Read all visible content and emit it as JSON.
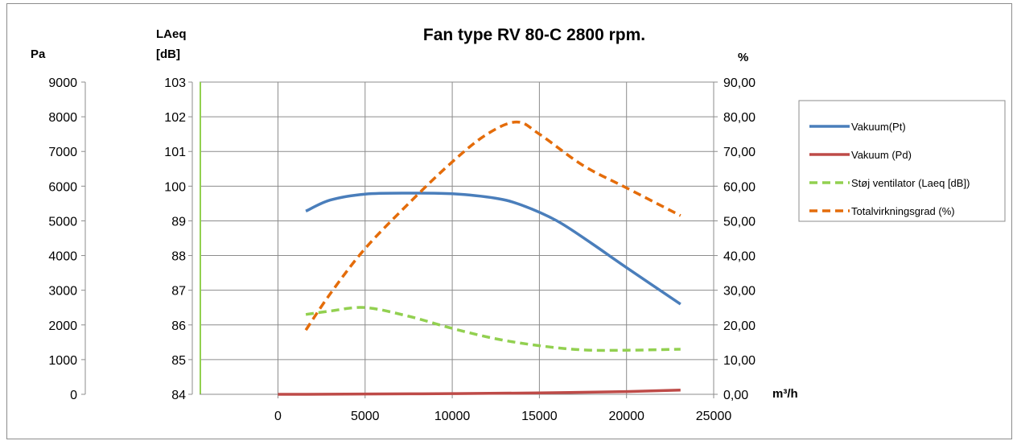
{
  "chart_data": {
    "type": "line",
    "title": "Fan type RV 80-C 2800 rpm.",
    "x_axis": {
      "label": "m³/h",
      "range": [
        -4500,
        25000
      ],
      "ticks": [
        0,
        5000,
        10000,
        15000,
        20000,
        25000
      ]
    },
    "y_axis_pa": {
      "label": "Pa",
      "range": [
        0,
        9000
      ],
      "ticks": [
        "0",
        "1000",
        "2000",
        "3000",
        "4000",
        "5000",
        "6000",
        "7000",
        "8000",
        "9000"
      ]
    },
    "y_axis_laeq": {
      "label_line1": "LAeq",
      "label_line2": "[dB]",
      "range": [
        84,
        103
      ],
      "note": "non-linear display: each gridline step is 1 dB except between 89 and 100",
      "ticks": [
        "84",
        "85",
        "86",
        "87",
        "88",
        "89",
        "100",
        "101",
        "102",
        "103"
      ]
    },
    "y_axis_pct": {
      "label": "%",
      "range": [
        0,
        90
      ],
      "ticks": [
        "0,00",
        "10,00",
        "20,00",
        "30,00",
        "40,00",
        "50,00",
        "60,00",
        "70,00",
        "80,00",
        "90,00"
      ]
    },
    "grid": true,
    "legend_position": "right",
    "series": [
      {
        "name": "Vakuum(Pt)",
        "axis": "Pa",
        "color": "#4a7ebb",
        "dash": "solid",
        "x": [
          1600,
          3000,
          5000,
          7500,
          10000,
          12500,
          14000,
          16000,
          18000,
          20000,
          23100
        ],
        "y": [
          5280,
          5600,
          5770,
          5800,
          5780,
          5650,
          5450,
          5000,
          4350,
          3650,
          2600
        ]
      },
      {
        "name": "Vakuum (Pd)",
        "axis": "Pa",
        "color": "#be4b48",
        "dash": "solid",
        "x": [
          0,
          1600,
          5000,
          10000,
          15000,
          20000,
          23100
        ],
        "y": [
          0,
          0,
          10,
          20,
          40,
          80,
          120
        ]
      },
      {
        "name": "Støj ventilator (Laeq [dB])",
        "axis": "LAeq",
        "color": "#92d050",
        "dash": "dashed",
        "x": [
          1600,
          3000,
          5000,
          7500,
          10000,
          12500,
          15000,
          17500,
          20000,
          23100
        ],
        "y": [
          86.3,
          86.4,
          86.5,
          86.25,
          85.9,
          85.6,
          85.4,
          85.28,
          85.27,
          85.3
        ]
      },
      {
        "name": "Totalvirkningsgrad (%)",
        "axis": "%",
        "color": "#e46c0a",
        "dash": "dashed",
        "x": [
          1600,
          3000,
          5000,
          7500,
          10000,
          12000,
          13700,
          15000,
          17500,
          20000,
          23100
        ],
        "y": [
          18.5,
          29,
          42,
          55,
          67,
          75,
          78.5,
          75,
          66,
          59.5,
          51.5
        ]
      }
    ]
  }
}
